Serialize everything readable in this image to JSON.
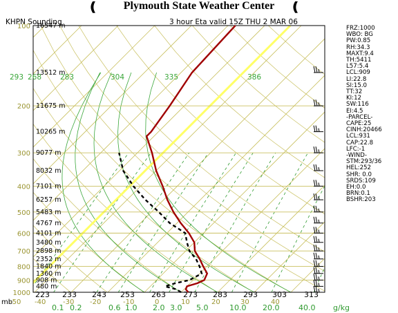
{
  "header": {
    "title": "Plymouth State Weather Center",
    "left_mark": "❪",
    "right_mark": "❪"
  },
  "chart_data": {
    "type": "skew-t log-p sounding",
    "station_label": "KHPN Sounding",
    "valid_label": "3 hour Eta valid 15Z THU  2 MAR 06",
    "p_axis": {
      "unit_label": "mb",
      "ticks": [
        100,
        200,
        300,
        400,
        500,
        600,
        700,
        800,
        900,
        1000
      ],
      "range": [
        100,
        1000
      ]
    },
    "t_axis": {
      "ticks": [
        -50,
        -40,
        -30,
        -20,
        -10,
        0,
        10,
        20,
        30,
        40
      ],
      "range": [
        -50,
        45
      ]
    },
    "heights": [
      {
        "p": 100,
        "label": "16547 m"
      },
      {
        "p": 150,
        "label": "13512 m"
      },
      {
        "p": 200,
        "label": "11675 m"
      },
      {
        "p": 250,
        "label": "10265 m"
      },
      {
        "p": 300,
        "label": "9077 m"
      },
      {
        "p": 350,
        "label": "8032 m"
      },
      {
        "p": 400,
        "label": "7101 m"
      },
      {
        "p": 450,
        "label": "6257 m"
      },
      {
        "p": 500,
        "label": "5483 m"
      },
      {
        "p": 550,
        "label": "4767 m"
      },
      {
        "p": 600,
        "label": "4101 m"
      },
      {
        "p": 650,
        "label": "3480 m"
      },
      {
        "p": 700,
        "label": "2898 m"
      },
      {
        "p": 750,
        "label": "2352 m"
      },
      {
        "p": 800,
        "label": "1840 m"
      },
      {
        "p": 850,
        "label": "1360 m"
      },
      {
        "p": 900,
        "label": "908 m"
      },
      {
        "p": 950,
        "label": "480 m"
      }
    ],
    "theta_labels_top": [
      "293",
      "268",
      "283",
      "304",
      "335",
      "386"
    ],
    "theta_labels_bottom": [
      "223",
      "233",
      "243",
      "253",
      "263",
      "273",
      "283",
      "293",
      "303",
      "313"
    ],
    "mixing_ratio_labels": [
      "0.1",
      "0.2",
      "0.6",
      "1.0",
      "2.0",
      "3.0",
      "5.0",
      "10.0",
      "20.0",
      "40.0"
    ],
    "mixing_ratio_unit": "g/kg",
    "temperature_profile": [
      {
        "p": 1000,
        "t": 2
      },
      {
        "p": 975,
        "t": 0.5
      },
      {
        "p": 950,
        "t": 0
      },
      {
        "p": 925,
        "t": 2
      },
      {
        "p": 900,
        "t": 3
      },
      {
        "p": 850,
        "t": 2
      },
      {
        "p": 800,
        "t": -1
      },
      {
        "p": 750,
        "t": -4
      },
      {
        "p": 700,
        "t": -7.5
      },
      {
        "p": 650,
        "t": -10
      },
      {
        "p": 600,
        "t": -14
      },
      {
        "p": 550,
        "t": -19
      },
      {
        "p": 500,
        "t": -24
      },
      {
        "p": 450,
        "t": -29
      },
      {
        "p": 400,
        "t": -34
      },
      {
        "p": 350,
        "t": -40
      },
      {
        "p": 300,
        "t": -46
      },
      {
        "p": 260,
        "t": -52
      },
      {
        "p": 250,
        "t": -52
      },
      {
        "p": 200,
        "t": -54
      },
      {
        "p": 150,
        "t": -57
      },
      {
        "p": 100,
        "t": -58
      }
    ],
    "dewpoint_profile": [
      {
        "p": 1000,
        "t": 0
      },
      {
        "p": 975,
        "t": -2
      },
      {
        "p": 950,
        "t": -6
      },
      {
        "p": 925,
        "t": -4
      },
      {
        "p": 900,
        "t": -1
      },
      {
        "p": 850,
        "t": 0.5
      },
      {
        "p": 800,
        "t": -2
      },
      {
        "p": 750,
        "t": -5
      },
      {
        "p": 700,
        "t": -9
      },
      {
        "p": 650,
        "t": -12
      },
      {
        "p": 600,
        "t": -15
      },
      {
        "p": 550,
        "t": -22
      },
      {
        "p": 500,
        "t": -28
      },
      {
        "p": 450,
        "t": -35
      },
      {
        "p": 400,
        "t": -42
      },
      {
        "p": 350,
        "t": -49
      },
      {
        "p": 300,
        "t": -55
      }
    ],
    "wind_barbs": [
      {
        "p": 150
      },
      {
        "p": 200
      },
      {
        "p": 250
      },
      {
        "p": 300
      },
      {
        "p": 350
      },
      {
        "p": 400
      },
      {
        "p": 450
      },
      {
        "p": 500
      },
      {
        "p": 550
      },
      {
        "p": 600
      },
      {
        "p": 650
      },
      {
        "p": 700
      },
      {
        "p": 750
      },
      {
        "p": 800
      },
      {
        "p": 850
      },
      {
        "p": 900
      },
      {
        "p": 950
      },
      {
        "p": 1000
      }
    ],
    "indices": [
      "FRZ:1000",
      "WBO: BG",
      "PW:0.85",
      "RH:34.3",
      "MAXT:9.4",
      "TH:5411",
      "L57:5.4",
      "LCL:909",
      "LI:22.8",
      "SI:15.0",
      "TT:32",
      "KI:12",
      "SW:116",
      "EI:4.5",
      "-PARCEL-",
      "CAPE:25",
      "CINH:20466",
      "LCL:931",
      "CAP:22.8",
      "LFC:-1",
      "-WIND-",
      "STM:293/36",
      "HEL:252",
      "SHR: 0.0",
      "SRDS:109",
      "EH:0.0",
      "BRN:0.1",
      "BSHR:203"
    ]
  },
  "colors": {
    "isobar": "#c9c060",
    "isotherm": "#c9c060",
    "dry_adiabat": "#c9c060",
    "moist_adiabat": "#39a639",
    "mixing_ratio": "#2f9a2f",
    "frame": "#000000",
    "temperature": "#a00000",
    "dewpoint": "#000000",
    "highlight_isotherm": "#ffff66"
  }
}
